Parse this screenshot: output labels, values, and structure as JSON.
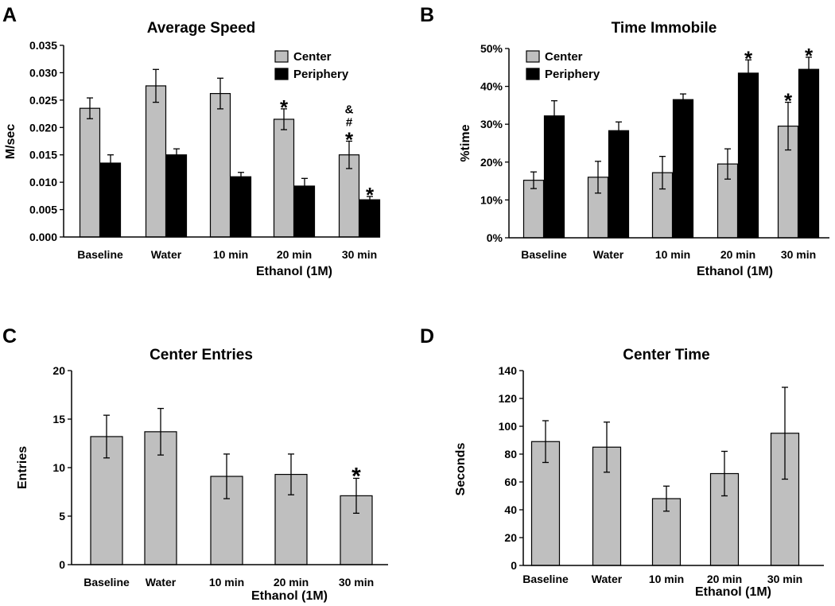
{
  "chart_data": [
    {
      "panel": "A",
      "type": "bar",
      "title": "Average Speed",
      "ylabel": "M/sec",
      "xgroup_label": "Ethanol (1M)",
      "categories": [
        "Baseline",
        "Water",
        "10 min",
        "20 min",
        "30 min"
      ],
      "ylim": [
        0,
        0.035
      ],
      "yticks": [
        0,
        0.005,
        0.01,
        0.015,
        0.02,
        0.025,
        0.03,
        0.035
      ],
      "ytick_labels": [
        "0.000",
        "0.005",
        "0.010",
        "0.015",
        "0.020",
        "0.025",
        "0.030",
        "0.035"
      ],
      "legend": "top-right",
      "series": [
        {
          "name": "Center",
          "color": "#bfbfbf",
          "values": [
            0.0235,
            0.0276,
            0.0262,
            0.0215,
            0.015
          ],
          "errors": [
            0.0019,
            0.003,
            0.0028,
            0.0019,
            0.0025
          ]
        },
        {
          "name": "Periphery",
          "color": "#000000",
          "values": [
            0.0135,
            0.015,
            0.011,
            0.0093,
            0.0068
          ],
          "errors": [
            0.0015,
            0.0011,
            0.0008,
            0.0014,
            0.0006
          ]
        }
      ],
      "annotations": [
        {
          "series": 0,
          "category": 3,
          "text": "*"
        },
        {
          "series": 0,
          "category": 4,
          "text": "&"
        },
        {
          "series": 0,
          "category": 4,
          "text": "#"
        },
        {
          "series": 0,
          "category": 4,
          "text": "*"
        },
        {
          "series": 1,
          "category": 4,
          "text": "*"
        }
      ]
    },
    {
      "panel": "B",
      "type": "bar",
      "title": "Time Immobile",
      "ylabel": "%time",
      "xgroup_label": "Ethanol (1M)",
      "categories": [
        "Baseline",
        "Water",
        "10 min",
        "20 min",
        "30 min"
      ],
      "ylim": [
        0,
        50
      ],
      "yticks": [
        0,
        10,
        20,
        30,
        40,
        50
      ],
      "ytick_labels": [
        "0%",
        "10%",
        "20%",
        "30%",
        "40%",
        "50%"
      ],
      "legend": "top-left",
      "series": [
        {
          "name": "Center",
          "color": "#bfbfbf",
          "values": [
            15.2,
            16.0,
            17.2,
            19.5,
            29.5
          ],
          "errors": [
            2.2,
            4.2,
            4.3,
            4.0,
            6.3
          ]
        },
        {
          "name": "Periphery",
          "color": "#000000",
          "values": [
            32.2,
            28.3,
            36.5,
            43.5,
            44.5
          ],
          "errors": [
            4.0,
            2.3,
            1.5,
            3.5,
            3.2
          ]
        }
      ],
      "annotations": [
        {
          "series": 1,
          "category": 3,
          "text": "*"
        },
        {
          "series": 0,
          "category": 4,
          "text": "*"
        },
        {
          "series": 1,
          "category": 4,
          "text": "*"
        }
      ]
    },
    {
      "panel": "C",
      "type": "bar",
      "title": "Center Entries",
      "ylabel": "Entries",
      "xgroup_label": "Ethanol (1M)",
      "categories": [
        "Baseline",
        "Water",
        "10 min",
        "20 min",
        "30 min"
      ],
      "ylim": [
        0,
        20
      ],
      "yticks": [
        0,
        5,
        10,
        15,
        20
      ],
      "ytick_labels": [
        "0",
        "5",
        "10",
        "15",
        "20"
      ],
      "series": [
        {
          "name": "Center Entries",
          "color": "#bfbfbf",
          "values": [
            13.2,
            13.7,
            9.1,
            9.3,
            7.1
          ],
          "errors": [
            2.2,
            2.4,
            2.3,
            2.1,
            1.8
          ]
        }
      ],
      "annotations": [
        {
          "series": 0,
          "category": 4,
          "text": "*"
        }
      ]
    },
    {
      "panel": "D",
      "type": "bar",
      "title": "Center Time",
      "ylabel": "Seconds",
      "xgroup_label": "Ethanol (1M)",
      "categories": [
        "Baseline",
        "Water",
        "10 min",
        "20 min",
        "30 min"
      ],
      "ylim": [
        0,
        140
      ],
      "yticks": [
        0,
        20,
        40,
        60,
        80,
        100,
        120,
        140
      ],
      "ytick_labels": [
        "0",
        "20",
        "40",
        "60",
        "80",
        "100",
        "120",
        "140"
      ],
      "series": [
        {
          "name": "Center Time",
          "color": "#bfbfbf",
          "values": [
            89,
            85,
            48,
            66,
            95
          ],
          "errors": [
            15,
            18,
            9,
            16,
            33
          ]
        }
      ],
      "annotations": []
    }
  ]
}
